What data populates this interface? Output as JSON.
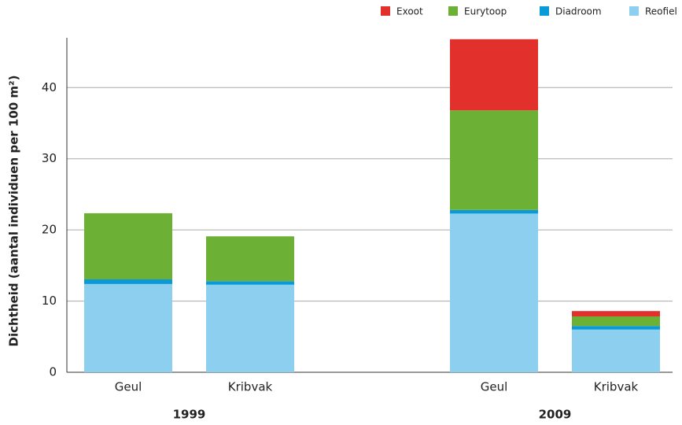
{
  "chart_data": {
    "type": "stacked_bar",
    "y_label": "Dichtheid (aantal individuen per 100 m²)",
    "categories": [
      "Geul",
      "Kribvak",
      "Geul",
      "Kribvak"
    ],
    "groups": [
      "1999",
      "2009"
    ],
    "series": [
      {
        "name": "Reofiel",
        "color": "#8ccfef",
        "values": [
          12.4,
          12.3,
          22.3,
          6.0
        ]
      },
      {
        "name": "Diadroom",
        "color": "#0a9ad7",
        "values": [
          0.65,
          0.5,
          0.5,
          0.5
        ]
      },
      {
        "name": "Eurytoop",
        "color": "#6db036",
        "values": [
          9.3,
          6.3,
          14,
          1.35
        ]
      },
      {
        "name": "Exoot",
        "color": "#e2312d",
        "values": [
          0,
          0,
          10,
          0.75
        ]
      }
    ],
    "ylim": [
      0,
      47
    ],
    "yticks": [
      0,
      10,
      20,
      30,
      40
    ],
    "grid": true,
    "legend": "top-right"
  }
}
